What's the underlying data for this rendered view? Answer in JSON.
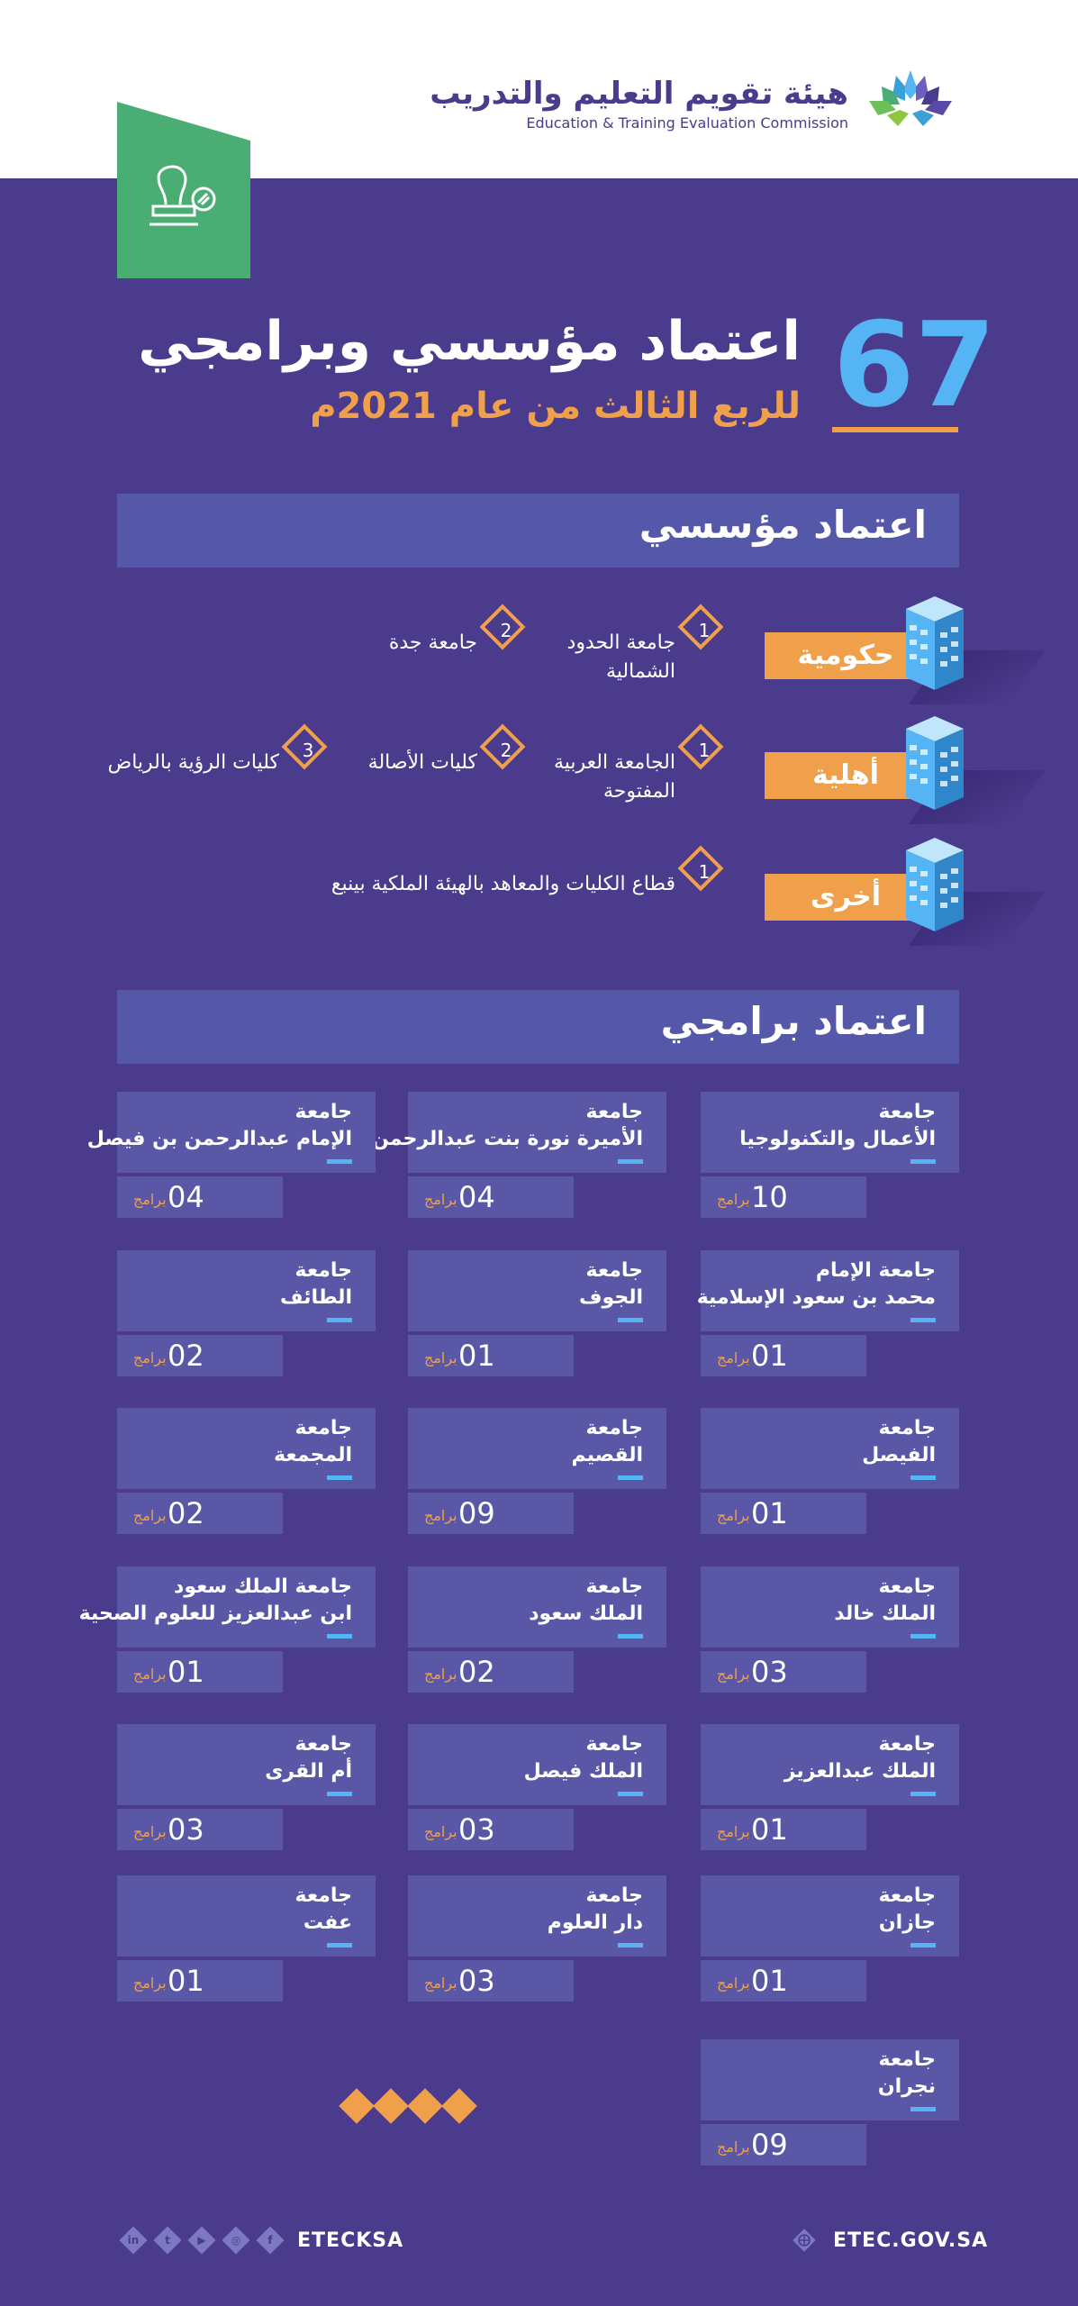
{
  "header": {
    "logo_ar": "هيئة تقويم التعليم والتدريب",
    "logo_en": "Education & Training Evaluation Commission",
    "logo_icon": "etec-logo-icon"
  },
  "badge": {
    "icon": "stamp-icon",
    "color": "#4aae74"
  },
  "hero": {
    "number": "67",
    "title": "اعتماد مؤسسي وبرامجي",
    "subtitle": "للربع الثالث من عام 2021م"
  },
  "institutional": {
    "heading": "اعتماد مؤسسي",
    "categories": [
      {
        "label": "حكومية",
        "items": [
          {
            "num": "1",
            "line1": "جامعة الحدود",
            "line2": "الشمالية"
          },
          {
            "num": "2",
            "line1": "جامعة جدة",
            "line2": ""
          }
        ]
      },
      {
        "label": "أهلية",
        "items": [
          {
            "num": "1",
            "line1": "الجامعة العربية",
            "line2": "المفتوحة"
          },
          {
            "num": "2",
            "line1": "كليات الأصالة",
            "line2": ""
          },
          {
            "num": "3",
            "line1": "كليات الرؤية بالرياض",
            "line2": ""
          }
        ]
      },
      {
        "label": "أخرى",
        "items": [
          {
            "num": "1",
            "line1": "قطاع الكليات والمعاهد بالهيئة الملكية بينبع",
            "line2": ""
          }
        ]
      }
    ]
  },
  "programmatic": {
    "heading": "اعتماد برامجي",
    "unit": "برامج",
    "universities": [
      {
        "line1": "جامعة",
        "line2": "الأعمال والتكنولوجيا",
        "count": "10"
      },
      {
        "line1": "جامعة",
        "line2": "الأميرة نورة بنت عبدالرحمن",
        "count": "04"
      },
      {
        "line1": "جامعة",
        "line2": "الإمام عبدالرحمن بن فيصل",
        "count": "04"
      },
      {
        "line1": "جامعة الإمام",
        "line2": "محمد بن سعود الإسلامية",
        "count": "01"
      },
      {
        "line1": "جامعة",
        "line2": "الجوف",
        "count": "01"
      },
      {
        "line1": "جامعة",
        "line2": "الطائف",
        "count": "02"
      },
      {
        "line1": "جامعة",
        "line2": "الفيصل",
        "count": "01"
      },
      {
        "line1": "جامعة",
        "line2": "القصيم",
        "count": "09"
      },
      {
        "line1": "جامعة",
        "line2": "المجمعة",
        "count": "02"
      },
      {
        "line1": "جامعة",
        "line2": "الملك خالد",
        "count": "03"
      },
      {
        "line1": "جامعة",
        "line2": "الملك سعود",
        "count": "02"
      },
      {
        "line1": "جامعة الملك سعود",
        "line2": "ابن عبدالعزيز للعلوم الصحية",
        "count": "01"
      },
      {
        "line1": "جامعة",
        "line2": "الملك عبدالعزيز",
        "count": "01"
      },
      {
        "line1": "جامعة",
        "line2": "الملك فيصل",
        "count": "03"
      },
      {
        "line1": "جامعة",
        "line2": "أم القرى",
        "count": "03"
      },
      {
        "line1": "جامعة",
        "line2": "جازان",
        "count": "01"
      },
      {
        "line1": "جامعة",
        "line2": "دار العلوم",
        "count": "03"
      },
      {
        "line1": "جامعة",
        "line2": "عفت",
        "count": "01"
      },
      {
        "line1": "جامعة",
        "line2": "نجران",
        "count": "09"
      }
    ]
  },
  "footer": {
    "handle": "ETECKSA",
    "website": "ETEC.GOV.SA",
    "social_icons": [
      "linkedin-icon",
      "twitter-icon",
      "youtube-icon",
      "instagram-icon",
      "facebook-icon"
    ],
    "web_icon": "globe-icon"
  },
  "colors": {
    "background": "#4b3b8c",
    "accent_orange": "#f0a04b",
    "accent_blue": "#54b4f4",
    "panel": "#5557a8"
  }
}
